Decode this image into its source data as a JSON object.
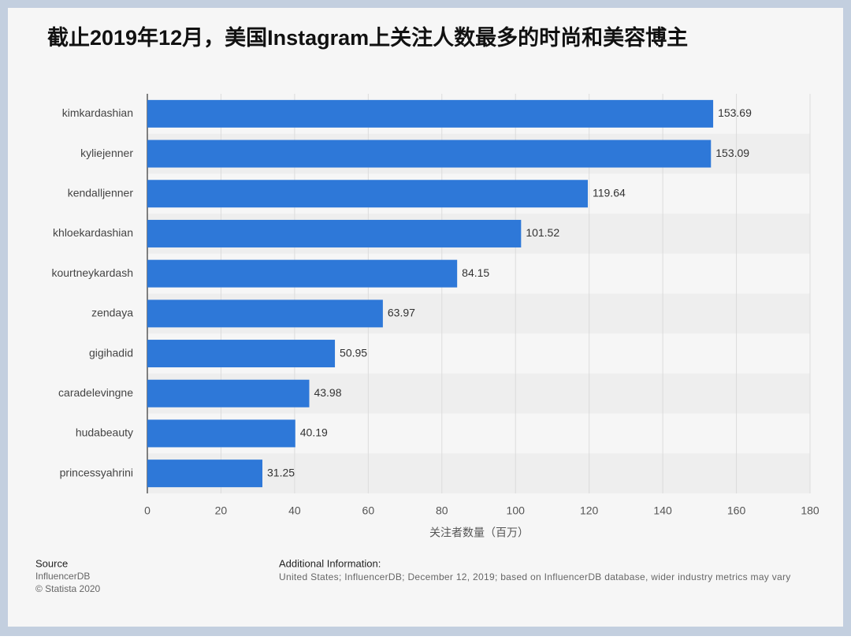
{
  "chart_data": {
    "type": "bar",
    "orientation": "horizontal",
    "title": "截止2019年12月，美国Instagram上关注人数最多的时尚和美容博主",
    "categories": [
      "kimkardashian",
      "kyliejenner",
      "kendalljenner",
      "khloekardashian",
      "kourtneykardash",
      "zendaya",
      "gigihadid",
      "caradelevingne",
      "hudabeauty",
      "princessyahrini"
    ],
    "values": [
      153.69,
      153.09,
      119.64,
      101.52,
      84.15,
      63.97,
      50.95,
      43.98,
      40.19,
      31.25
    ],
    "color": "#2e78d8",
    "xlabel": "关注者数量（百万）",
    "xlim": [
      0,
      180
    ],
    "xticks": [
      0,
      20,
      40,
      60,
      80,
      100,
      120,
      140,
      160,
      180
    ],
    "grid": true
  },
  "footer": {
    "source_title": "Source",
    "source_lines": [
      "InfluencerDB",
      "© Statista 2020"
    ],
    "info_title": "Additional Information:",
    "info_text": "United States; InfluencerDB; December 12, 2019; based on InfluencerDB database, wider industry metrics may vary"
  }
}
